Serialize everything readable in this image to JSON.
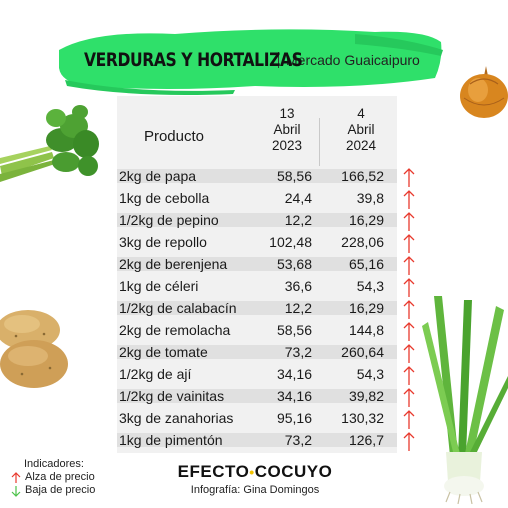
{
  "header": {
    "title": "VERDURAS Y HORTALIZAS",
    "subtitle": "Mercado Guaicaipuro",
    "accent_color": "#2fe06a"
  },
  "table": {
    "product_header": "Producto",
    "date1": {
      "day": "13",
      "month": "Abril",
      "year": "2023"
    },
    "date2": {
      "day": "4",
      "month": "Abril",
      "year": "2024"
    },
    "rows": [
      {
        "product": "2kg de papa",
        "v1": "58,56",
        "v2": "166,52",
        "trend": "up"
      },
      {
        "product": "1kg de cebolla",
        "v1": "24,4",
        "v2": "39,8",
        "trend": "up"
      },
      {
        "product": "1/2kg de pepino",
        "v1": "12,2",
        "v2": "16,29",
        "trend": "up"
      },
      {
        "product": "3kg de repollo",
        "v1": "102,48",
        "v2": "228,06",
        "trend": "up"
      },
      {
        "product": "2kg de berenjena",
        "v1": "53,68",
        "v2": "65,16",
        "trend": "up"
      },
      {
        "product": "1kg de céleri",
        "v1": "36,6",
        "v2": "54,3",
        "trend": "up"
      },
      {
        "product": "1/2kg de calabacín",
        "v1": "12,2",
        "v2": "16,29",
        "trend": "up"
      },
      {
        "product": "2kg de remolacha",
        "v1": "58,56",
        "v2": "144,8",
        "trend": "up"
      },
      {
        "product": "2kg de tomate",
        "v1": "73,2",
        "v2": "260,64",
        "trend": "up"
      },
      {
        "product": "1/2kg de ají",
        "v1": "34,16",
        "v2": "54,3",
        "trend": "up"
      },
      {
        "product": "1/2kg de vainitas",
        "v1": "34,16",
        "v2": "39,82",
        "trend": "up"
      },
      {
        "product": "3kg de zanahorias",
        "v1": "95,16",
        "v2": "130,32",
        "trend": "up"
      },
      {
        "product": "1kg de pimentón",
        "v1": "73,2",
        "v2": "126,7",
        "trend": "up"
      }
    ]
  },
  "legend": {
    "title": "Indicadores:",
    "up_label": "Alza de precio",
    "down_label": "Baja de precio",
    "up_color": "#e83a2e",
    "down_color": "#4cc24a"
  },
  "footer": {
    "brand_left": "EFECTO",
    "brand_dot": "•",
    "brand_right": "COCUYO",
    "credit": "Infografía: Gina Domingos"
  },
  "icons": {
    "trend_up": "arrow-up-icon",
    "trend_down": "arrow-down-icon",
    "celery": "celery-illustration",
    "onion": "onion-illustration",
    "potatoes": "potatoes-illustration",
    "green_onions": "green-onion-illustration"
  }
}
